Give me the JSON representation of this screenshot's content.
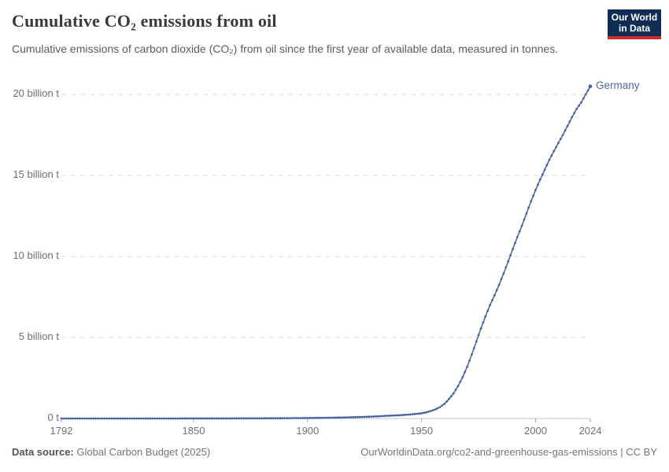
{
  "header": {
    "title": "Cumulative CO₂ emissions from oil",
    "subtitle": "Cumulative emissions of carbon dioxide (CO₂) from oil since the first year of available data, measured in tonnes.",
    "logo_line1": "Our World",
    "logo_line2": "in Data"
  },
  "footer": {
    "source_label": "Data source:",
    "source_value": " Global Carbon Budget (2025)",
    "right_text": "OurWorldinData.org/co2-and-greenhouse-gas-emissions | CC BY"
  },
  "colors": {
    "line": "#4c6a9c",
    "marker": "#44639a",
    "grid": "#d9d9d9",
    "axis_line": "#c6c6c6",
    "axis_tick": "#a8a8a8",
    "logo_bg": "#102e54",
    "logo_red": "#d12d29"
  },
  "chart_data": {
    "type": "line",
    "title": "Cumulative CO₂ emissions from oil",
    "unit": "billion tonnes",
    "entity": "Germany",
    "x_domain": [
      1792,
      2024
    ],
    "y_domain": [
      0,
      20
    ],
    "grid": "dashed-horizontal",
    "x_ticks": [
      1792,
      1850,
      1900,
      1950,
      2000,
      2024
    ],
    "y_ticks": [
      {
        "value": 0,
        "label": "0 t"
      },
      {
        "value": 5,
        "label": "5 billion t"
      },
      {
        "value": 10,
        "label": "10 billion t"
      },
      {
        "value": 15,
        "label": "15 billion t"
      },
      {
        "value": 20,
        "label": "20 billion t"
      }
    ],
    "series": [
      {
        "name": "Germany",
        "color": "#4c6a9c",
        "points": [
          [
            1792,
            0
          ],
          [
            1800,
            0
          ],
          [
            1820,
            0.001
          ],
          [
            1840,
            0.002
          ],
          [
            1850,
            0.003
          ],
          [
            1860,
            0.005
          ],
          [
            1870,
            0.008
          ],
          [
            1880,
            0.012
          ],
          [
            1890,
            0.018
          ],
          [
            1900,
            0.03
          ],
          [
            1905,
            0.04
          ],
          [
            1910,
            0.05
          ],
          [
            1915,
            0.06
          ],
          [
            1920,
            0.08
          ],
          [
            1925,
            0.1
          ],
          [
            1930,
            0.13
          ],
          [
            1935,
            0.17
          ],
          [
            1940,
            0.2
          ],
          [
            1945,
            0.25
          ],
          [
            1948,
            0.29
          ],
          [
            1950,
            0.32
          ],
          [
            1952,
            0.38
          ],
          [
            1954,
            0.46
          ],
          [
            1956,
            0.56
          ],
          [
            1958,
            0.7
          ],
          [
            1960,
            0.9
          ],
          [
            1962,
            1.2
          ],
          [
            1964,
            1.55
          ],
          [
            1966,
            2.0
          ],
          [
            1968,
            2.55
          ],
          [
            1970,
            3.2
          ],
          [
            1972,
            3.95
          ],
          [
            1974,
            4.75
          ],
          [
            1976,
            5.55
          ],
          [
            1978,
            6.3
          ],
          [
            1980,
            7.0
          ],
          [
            1982,
            7.6
          ],
          [
            1984,
            8.25
          ],
          [
            1986,
            8.95
          ],
          [
            1988,
            9.7
          ],
          [
            1990,
            10.45
          ],
          [
            1992,
            11.2
          ],
          [
            1994,
            11.9
          ],
          [
            1996,
            12.65
          ],
          [
            1998,
            13.4
          ],
          [
            2000,
            14.1
          ],
          [
            2002,
            14.75
          ],
          [
            2004,
            15.35
          ],
          [
            2006,
            15.95
          ],
          [
            2008,
            16.5
          ],
          [
            2010,
            17.0
          ],
          [
            2012,
            17.5
          ],
          [
            2014,
            18.05
          ],
          [
            2016,
            18.6
          ],
          [
            2018,
            19.1
          ],
          [
            2020,
            19.5
          ],
          [
            2022,
            20.0
          ],
          [
            2024,
            20.5
          ]
        ]
      }
    ]
  }
}
